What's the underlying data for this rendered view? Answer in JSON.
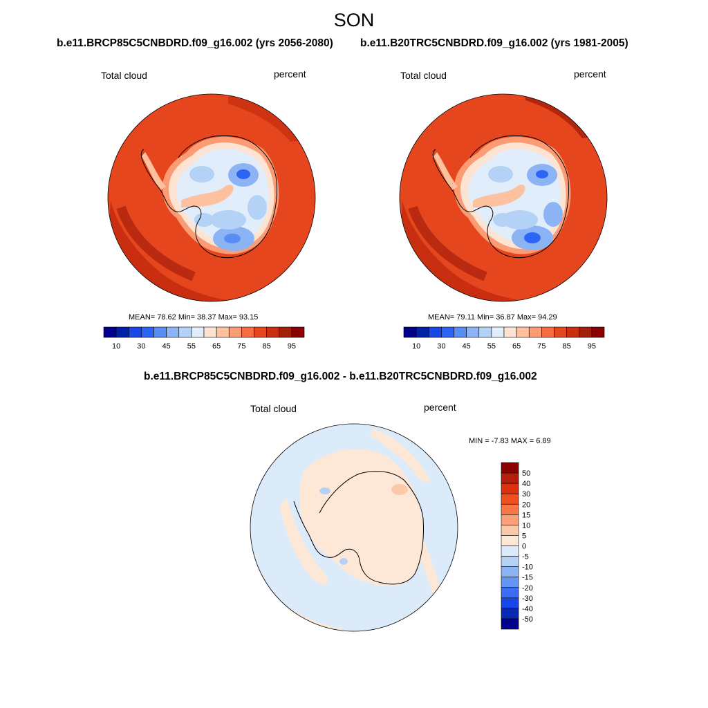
{
  "figure": {
    "season": "SON",
    "case_a": "b.e11.BRCP85C5CNBDRD.f09_g16.002 (yrs 2056-2080)",
    "case_b": "b.e11.B20TRC5CNBDRD.f09_g16.002 (yrs 1981-2005)",
    "diff_title": "b.e11.BRCP85C5CNBDRD.f09_g16.002 - b.e11.B20TRC5CNBDRD.f09_g16.002"
  },
  "chart_data": [
    {
      "type": "contour-map",
      "panel": "case_a",
      "variable_label": "Total cloud",
      "units_label": "percent",
      "stats": {
        "mean": "78.62",
        "min": "38.37",
        "max": "93.15"
      },
      "stats_text": "MEAN=  78.62  Min=  38.37  Max=  93.15",
      "colorbar_levels": [
        10,
        20,
        30,
        40,
        45,
        50,
        55,
        60,
        65,
        70,
        75,
        80,
        85,
        90,
        95
      ],
      "colorbar_labels": [
        "10",
        "30",
        "45",
        "55",
        "65",
        "75",
        "85",
        "95"
      ],
      "colors": [
        "#00008b",
        "#0020a8",
        "#1946e6",
        "#2d64f5",
        "#5a8cf5",
        "#8cb4f5",
        "#b4d2f5",
        "#e1edfa",
        "#fde4d2",
        "#fdc1a0",
        "#fb9c74",
        "#f66b40",
        "#e6461e",
        "#c82e0f",
        "#a51e0a",
        "#8b0000"
      ]
    },
    {
      "type": "contour-map",
      "panel": "case_b",
      "variable_label": "Total cloud",
      "units_label": "percent",
      "stats": {
        "mean": "79.11",
        "min": "36.87",
        "max": "94.29"
      },
      "stats_text": "MEAN=  79.11  Min=  36.87  Max=  94.29",
      "colorbar_levels": [
        10,
        20,
        30,
        40,
        45,
        50,
        55,
        60,
        65,
        70,
        75,
        80,
        85,
        90,
        95
      ],
      "colorbar_labels": [
        "10",
        "30",
        "45",
        "55",
        "65",
        "75",
        "85",
        "95"
      ],
      "colors": [
        "#00008b",
        "#0020a8",
        "#1946e6",
        "#2d64f5",
        "#5a8cf5",
        "#8cb4f5",
        "#b4d2f5",
        "#e1edfa",
        "#fde4d2",
        "#fdc1a0",
        "#fb9c74",
        "#f66b40",
        "#e6461e",
        "#c82e0f",
        "#a51e0a",
        "#8b0000"
      ]
    },
    {
      "type": "contour-map",
      "panel": "difference",
      "variable_label": "Total cloud",
      "units_label": "percent",
      "stats": {
        "min": "-7.83",
        "max": "6.89"
      },
      "stats_text": "MIN =  -7.83 MAX =   6.89",
      "colorbar_levels": [
        50,
        40,
        30,
        20,
        15,
        10,
        5,
        0,
        -5,
        -10,
        -15,
        -20,
        -30,
        -40,
        -50
      ],
      "colorbar_labels": [
        "50",
        "40",
        "30",
        "20",
        "15",
        "10",
        "5",
        "0",
        "-5",
        "-10",
        "-15",
        "-20",
        "-30",
        "-40",
        "-50"
      ],
      "colors": [
        "#8b0000",
        "#b41e0a",
        "#dc320f",
        "#f0501e",
        "#f57846",
        "#fa9f78",
        "#fcc8aa",
        "#fde8d7",
        "#dcebfa",
        "#b4d2f5",
        "#8cb4f5",
        "#6495f0",
        "#3c6ef5",
        "#1946e6",
        "#0a28b4",
        "#00008b"
      ]
    }
  ]
}
